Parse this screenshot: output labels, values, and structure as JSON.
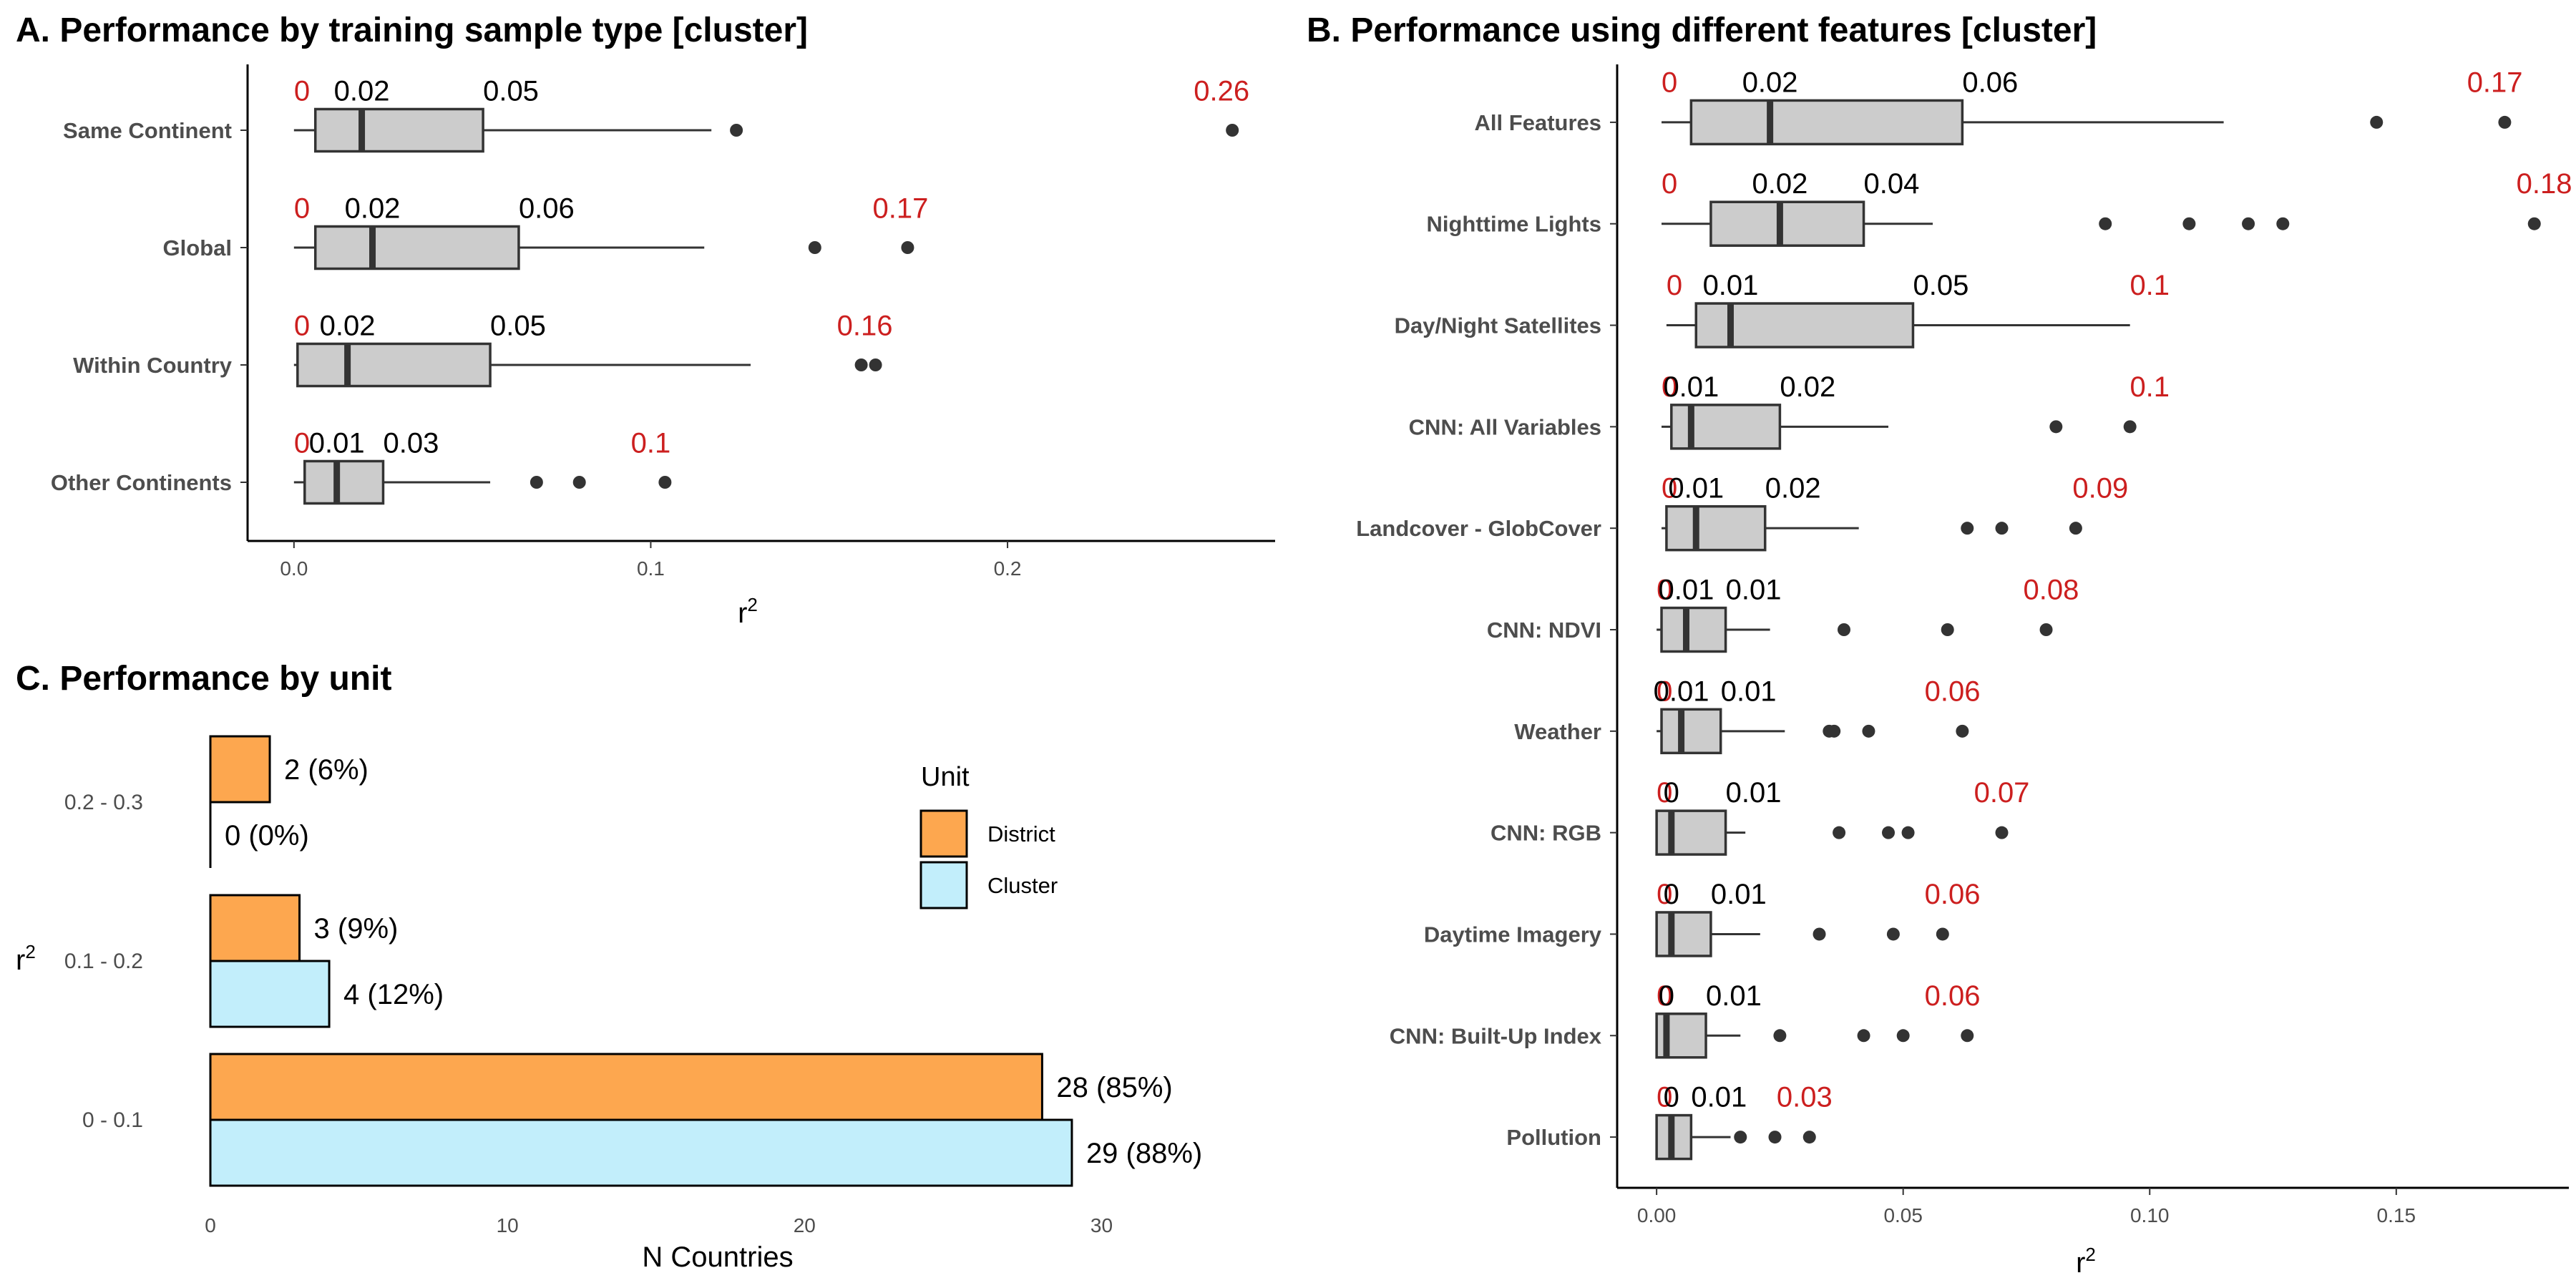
{
  "colors": {
    "box_fill": "#cccccc",
    "outline": "#333333",
    "annotation_red": "#cc1f1f",
    "annotation_black": "#000000",
    "district": "#fda74f",
    "cluster": "#c2eefb"
  },
  "chart_data": [
    {
      "id": "A",
      "type": "box",
      "title": "A. Performance by training sample type [cluster]",
      "xlabel": "r²",
      "ylabel": "",
      "xlim": [
        -0.013,
        0.275
      ],
      "xticks": [
        0.0,
        0.1,
        0.2
      ],
      "xtick_labels": [
        "0.0",
        "0.1",
        "0.2"
      ],
      "categories": [
        "Same Continent",
        "Global",
        "Within Country",
        "Other Continents"
      ],
      "boxes": [
        {
          "category": "Same Continent",
          "min": 0.0,
          "q1": 0.006,
          "median": 0.019,
          "q3": 0.053,
          "whisker_high": 0.117,
          "outliers": [
            0.124,
            0.263
          ],
          "max": 0.26,
          "labels": {
            "min": "0",
            "median": "0.02",
            "q3": "0.05",
            "max": "0.26"
          }
        },
        {
          "category": "Global",
          "min": 0.0,
          "q1": 0.006,
          "median": 0.022,
          "q3": 0.063,
          "whisker_high": 0.115,
          "outliers": [
            0.146,
            0.172
          ],
          "max": 0.17,
          "labels": {
            "min": "0",
            "median": "0.02",
            "q3": "0.06",
            "max": "0.17"
          }
        },
        {
          "category": "Within Country",
          "min": 0.0,
          "q1": 0.001,
          "median": 0.015,
          "q3": 0.055,
          "whisker_high": 0.128,
          "outliers": [
            0.159,
            0.163
          ],
          "max": 0.16,
          "labels": {
            "min": "0",
            "median": "0.02",
            "q3": "0.05",
            "max": "0.16"
          }
        },
        {
          "category": "Other Continents",
          "min": 0.0,
          "q1": 0.003,
          "median": 0.012,
          "q3": 0.025,
          "whisker_high": 0.055,
          "outliers": [
            0.068,
            0.08,
            0.104
          ],
          "max": 0.1,
          "labels": {
            "min": "0",
            "median": "0.01",
            "q3": "0.03",
            "max": "0.1"
          }
        }
      ]
    },
    {
      "id": "B",
      "type": "box",
      "title": "B. Performance using different features [cluster]",
      "xlabel": "r²",
      "ylabel": "",
      "xlim": [
        -0.008,
        0.185
      ],
      "xticks": [
        0.0,
        0.05,
        0.1,
        0.15
      ],
      "xtick_labels": [
        "0.00",
        "0.05",
        "0.10",
        "0.15"
      ],
      "categories": [
        "All Features",
        "Nighttime Lights",
        "Day/Night Satellites",
        "CNN: All Variables",
        "Landcover - GlobCover",
        "CNN: NDVI",
        "Weather",
        "CNN: RGB",
        "Daytime Imagery",
        "CNN: Built-Up Index",
        "Pollution"
      ],
      "boxes": [
        {
          "category": "All Features",
          "min": 0.001,
          "q1": 0.007,
          "median": 0.023,
          "q3": 0.062,
          "whisker_high": 0.115,
          "outliers": [
            0.146,
            0.172
          ],
          "max": 0.17,
          "labels": {
            "min": "0",
            "median": "0.02",
            "q3": "0.06",
            "max": "0.17"
          }
        },
        {
          "category": "Nighttime Lights",
          "min": 0.001,
          "q1": 0.011,
          "median": 0.025,
          "q3": 0.042,
          "whisker_high": 0.056,
          "outliers": [
            0.091,
            0.108,
            0.12,
            0.127,
            0.178
          ],
          "max": 0.18,
          "labels": {
            "min": "0",
            "median": "0.02",
            "q3": "0.04",
            "max": "0.18"
          }
        },
        {
          "category": "Day/Night Satellites",
          "min": 0.002,
          "q1": 0.008,
          "median": 0.015,
          "q3": 0.052,
          "whisker_high": 0.096,
          "outliers": [],
          "max": 0.1,
          "labels": {
            "min": "0",
            "median": "0.01",
            "q3": "0.05",
            "max": "0.1"
          }
        },
        {
          "category": "CNN: All Variables",
          "min": 0.001,
          "q1": 0.003,
          "median": 0.007,
          "q3": 0.025,
          "whisker_high": 0.047,
          "outliers": [
            0.081,
            0.096
          ],
          "max": 0.1,
          "labels": {
            "min": "0",
            "median": "0.01",
            "q3": "0.02",
            "max": "0.1"
          }
        },
        {
          "category": "Landcover - GlobCover",
          "min": 0.001,
          "q1": 0.002,
          "median": 0.008,
          "q3": 0.022,
          "whisker_high": 0.041,
          "outliers": [
            0.063,
            0.07,
            0.085
          ],
          "max": 0.09,
          "labels": {
            "min": "0",
            "median": "0.01",
            "q3": "0.02",
            "max": "0.09"
          }
        },
        {
          "category": "CNN: NDVI",
          "min": 0.0,
          "q1": 0.001,
          "median": 0.006,
          "q3": 0.014,
          "whisker_high": 0.023,
          "outliers": [
            0.038,
            0.059,
            0.079
          ],
          "max": 0.08,
          "labels": {
            "min": "0",
            "median": "0.01",
            "q3": "0.01",
            "max": "0.08"
          }
        },
        {
          "category": "Weather",
          "min": 0.0,
          "q1": 0.001,
          "median": 0.005,
          "q3": 0.013,
          "whisker_high": 0.026,
          "outliers": [
            0.035,
            0.036,
            0.043,
            0.062
          ],
          "max": 0.06,
          "labels": {
            "min": "0",
            "median": "0.01",
            "q3": "0.01",
            "max": "0.06"
          }
        },
        {
          "category": "CNN: RGB",
          "min": 0.0,
          "q1": 0.0,
          "median": 0.003,
          "q3": 0.014,
          "whisker_high": 0.018,
          "outliers": [
            0.037,
            0.047,
            0.051,
            0.07
          ],
          "max": 0.07,
          "labels": {
            "min": "0",
            "median": "0",
            "q3": "0.01",
            "max": "0.07"
          }
        },
        {
          "category": "Daytime Imagery",
          "min": 0.0,
          "q1": 0.0,
          "median": 0.003,
          "q3": 0.011,
          "whisker_high": 0.021,
          "outliers": [
            0.033,
            0.048,
            0.058
          ],
          "max": 0.06,
          "labels": {
            "min": "0",
            "median": "0",
            "q3": "0.01",
            "max": "0.06"
          }
        },
        {
          "category": "CNN: Built-Up Index",
          "min": 0.0,
          "q1": 0.0,
          "median": 0.002,
          "q3": 0.01,
          "whisker_high": 0.017,
          "outliers": [
            0.025,
            0.042,
            0.05,
            0.063
          ],
          "max": 0.06,
          "labels": {
            "min": "0",
            "median": "0",
            "q3": "0.01",
            "max": "0.06"
          }
        },
        {
          "category": "Pollution",
          "min": 0.0,
          "q1": 0.0,
          "median": 0.003,
          "q3": 0.007,
          "whisker_high": 0.015,
          "outliers": [
            0.017,
            0.024,
            0.031
          ],
          "max": 0.03,
          "labels": {
            "min": "0",
            "median": "0",
            "q3": "0.01",
            "max": "0.03"
          }
        }
      ]
    },
    {
      "id": "C",
      "type": "bar",
      "orientation": "horizontal",
      "title": "C. Performance by unit",
      "xlabel": "N Countries",
      "ylabel": "r²",
      "xlim": [
        0,
        33
      ],
      "xticks": [
        0,
        10,
        20,
        30
      ],
      "xtick_labels": [
        "0",
        "10",
        "20",
        "30"
      ],
      "categories": [
        "0.2 - 0.3",
        "0.1 - 0.2",
        "0 - 0.1"
      ],
      "series": [
        {
          "name": "District",
          "values": [
            2,
            3,
            28
          ],
          "labels": [
            "2 (6%)",
            "3 (9%)",
            "28 (85%)"
          ]
        },
        {
          "name": "Cluster",
          "values": [
            0,
            4,
            29
          ],
          "labels": [
            "0 (0%)",
            "4 (12%)",
            "29 (88%)"
          ]
        }
      ],
      "legend": {
        "title": "Unit",
        "position": "inside-right"
      }
    }
  ]
}
